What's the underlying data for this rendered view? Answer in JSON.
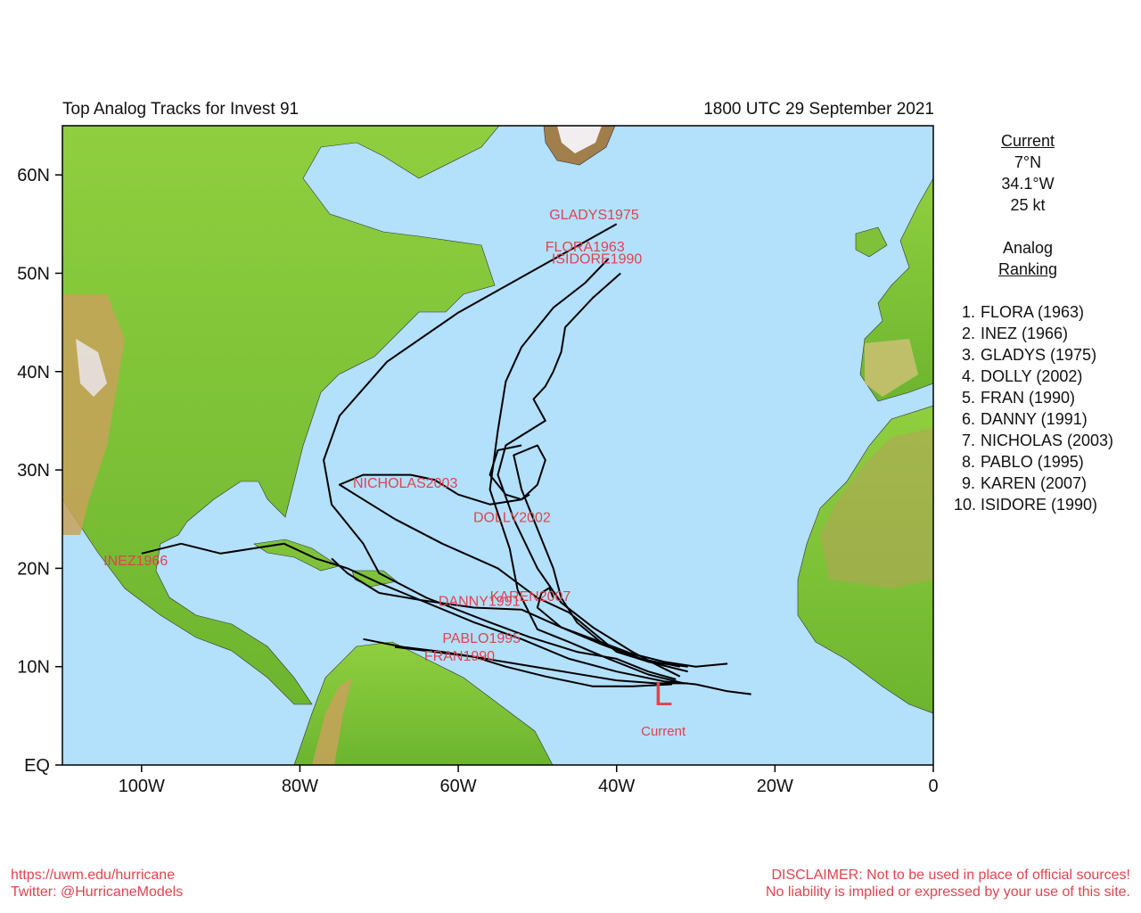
{
  "header": {
    "title": "Top Analog Tracks for Invest 91",
    "datetime": "1800 UTC 29 September 2021"
  },
  "axes": {
    "lat_labels": [
      "60N",
      "50N",
      "40N",
      "30N",
      "20N",
      "10N",
      "EQ"
    ],
    "lon_labels": [
      "100W",
      "80W",
      "60W",
      "40W",
      "20W",
      "0"
    ]
  },
  "current": {
    "heading": "Current",
    "lat": "7°N",
    "lon": "34.1°W",
    "wind": "25 kt",
    "marker_symbol": "L",
    "marker_label": "Current"
  },
  "analog": {
    "heading_line1": "Analog",
    "heading_line2": "Ranking",
    "list": [
      {
        "num": "1.",
        "name": "FLORA (1963)"
      },
      {
        "num": "2.",
        "name": "INEZ (1966)"
      },
      {
        "num": "3.",
        "name": "GLADYS (1975)"
      },
      {
        "num": "4.",
        "name": "DOLLY (2002)"
      },
      {
        "num": "5.",
        "name": "FRAN (1990)"
      },
      {
        "num": "6.",
        "name": "DANNY (1991)"
      },
      {
        "num": "7.",
        "name": "NICHOLAS (2003)"
      },
      {
        "num": "8.",
        "name": "PABLO (1995)"
      },
      {
        "num": "9.",
        "name": "KAREN (2007)"
      },
      {
        "num": "10.",
        "name": "ISIDORE (1990)"
      }
    ]
  },
  "track_labels": [
    {
      "text": "GLADYS1975",
      "lat": 55.5,
      "lon": -48.5
    },
    {
      "text": "FLORA1963",
      "lat": 52.2,
      "lon": -49.0
    },
    {
      "text": "ISIDORE1990",
      "lat": 51.0,
      "lon": -48.2
    },
    {
      "text": "NICHOLAS2003",
      "lat": 28.2,
      "lon": -73.3
    },
    {
      "text": "DOLLY2002",
      "lat": 24.7,
      "lon": -58.1
    },
    {
      "text": "INEZ1966",
      "lat": 20.3,
      "lon": -104.8
    },
    {
      "text": "KAREN2007",
      "lat": 16.7,
      "lon": -56.0
    },
    {
      "text": "DANNY1991",
      "lat": 16.2,
      "lon": -62.5
    },
    {
      "text": "PABLO1995",
      "lat": 12.4,
      "lon": -62.0
    },
    {
      "text": "FRAN1990",
      "lat": 10.6,
      "lon": -64.3
    }
  ],
  "tracks": [
    {
      "name": "GLADYS",
      "pts": [
        [
          -32.5,
          8.7
        ],
        [
          -36,
          9.5
        ],
        [
          -40,
          10.8
        ],
        [
          -45,
          11.5
        ],
        [
          -51,
          13
        ],
        [
          -56,
          14.5
        ],
        [
          -64,
          17
        ],
        [
          -70,
          19.5
        ],
        [
          -72,
          22.5
        ],
        [
          -76,
          26.5
        ],
        [
          -77,
          31
        ],
        [
          -75,
          35.5
        ],
        [
          -69,
          41
        ],
        [
          -60,
          46
        ],
        [
          -50,
          50.5
        ],
        [
          -40,
          55
        ]
      ]
    },
    {
      "name": "FLORA",
      "pts": [
        [
          -31.5,
          8.3
        ],
        [
          -36,
          9.2
        ],
        [
          -41,
          10.8
        ],
        [
          -46,
          12.5
        ],
        [
          -50,
          13.8
        ],
        [
          -52.5,
          17.8
        ],
        [
          -53.5,
          22
        ],
        [
          -56,
          28
        ],
        [
          -55,
          34
        ],
        [
          -54,
          39
        ],
        [
          -52,
          42.5
        ],
        [
          -48,
          46.5
        ],
        [
          -44,
          49
        ],
        [
          -41,
          51.5
        ]
      ]
    },
    {
      "name": "ISIDORE",
      "pts": [
        [
          -32,
          9
        ],
        [
          -34.5,
          10
        ],
        [
          -38,
          11.5
        ],
        [
          -43,
          14
        ],
        [
          -47,
          16.5
        ],
        [
          -50,
          20
        ],
        [
          -53,
          25
        ],
        [
          -55,
          29.5
        ],
        [
          -54,
          32.5
        ],
        [
          -50,
          34.5
        ],
        [
          -49,
          35
        ],
        [
          -50.5,
          37.2
        ],
        [
          -49,
          38.5
        ],
        [
          -48,
          40
        ],
        [
          -47,
          42
        ],
        [
          -46.5,
          44.5
        ],
        [
          -43,
          47.5
        ],
        [
          -39.5,
          50
        ]
      ]
    },
    {
      "name": "NICHOLAS",
      "pts": [
        [
          -31,
          10
        ],
        [
          -36,
          10.5
        ],
        [
          -40,
          11.5
        ],
        [
          -43,
          13.5
        ],
        [
          -46,
          15.5
        ],
        [
          -50,
          17
        ],
        [
          -55,
          20
        ],
        [
          -62,
          22.5
        ],
        [
          -68,
          25
        ],
        [
          -73,
          27.5
        ],
        [
          -75,
          28.5
        ],
        [
          -72,
          29.5
        ],
        [
          -68,
          29.5
        ],
        [
          -66,
          29.5
        ],
        [
          -63,
          29
        ],
        [
          -60,
          27.5
        ],
        [
          -56,
          26.5
        ],
        [
          -52,
          27
        ],
        [
          -51,
          27.5
        ]
      ]
    },
    {
      "name": "DOLLY",
      "pts": [
        [
          -26,
          10.3
        ],
        [
          -30,
          10
        ],
        [
          -34,
          10.5
        ],
        [
          -38,
          11.3
        ],
        [
          -42,
          12.5
        ],
        [
          -45,
          14.5
        ],
        [
          -47,
          17
        ],
        [
          -48,
          20
        ],
        [
          -50,
          24
        ],
        [
          -52,
          28
        ],
        [
          -53,
          31.5
        ],
        [
          -50,
          32.5
        ],
        [
          -49,
          31
        ],
        [
          -50,
          28.5
        ],
        [
          -52,
          27
        ],
        [
          -54,
          27.5
        ],
        [
          -56,
          29.5
        ],
        [
          -55,
          32
        ],
        [
          -52,
          32.5
        ]
      ]
    },
    {
      "name": "INEZ",
      "pts": [
        [
          -23,
          7.2
        ],
        [
          -26,
          7.5
        ],
        [
          -30,
          8.2
        ],
        [
          -34,
          8.5
        ],
        [
          -40,
          9.5
        ],
        [
          -46,
          10.8
        ],
        [
          -52,
          12.8
        ],
        [
          -58,
          14.5
        ],
        [
          -64,
          16.5
        ],
        [
          -70,
          18.5
        ],
        [
          -74,
          20
        ],
        [
          -78,
          21
        ],
        [
          -82,
          22.5
        ],
        [
          -86,
          22
        ],
        [
          -90,
          21.5
        ],
        [
          -95,
          22.5
        ],
        [
          -100,
          21.5
        ]
      ]
    },
    {
      "name": "KAREN",
      "pts": [
        [
          -31,
          9.5
        ],
        [
          -36,
          10.5
        ],
        [
          -42,
          12.5
        ],
        [
          -47,
          14
        ],
        [
          -50,
          16
        ],
        [
          -49.5,
          17.5
        ],
        [
          -48.5,
          18
        ],
        [
          -48,
          17
        ]
      ]
    },
    {
      "name": "DANNY",
      "pts": [
        [
          -32,
          10
        ],
        [
          -37,
          10.8
        ],
        [
          -42,
          12.3
        ],
        [
          -47,
          14
        ],
        [
          -52,
          15.8
        ],
        [
          -58,
          16
        ],
        [
          -65,
          16.8
        ],
        [
          -70,
          17.5
        ],
        [
          -74,
          19.5
        ],
        [
          -76,
          21
        ]
      ]
    },
    {
      "name": "PABLO",
      "pts": [
        [
          -33,
          8.2
        ],
        [
          -38,
          8
        ],
        [
          -43,
          8
        ],
        [
          -49,
          9
        ],
        [
          -54,
          10
        ],
        [
          -58,
          11
        ],
        [
          -62,
          11.5
        ],
        [
          -67,
          12
        ],
        [
          -72,
          12.8
        ]
      ]
    },
    {
      "name": "FRAN",
      "pts": [
        [
          -31,
          8.3
        ],
        [
          -35,
          8.3
        ],
        [
          -40,
          8.6
        ],
        [
          -46,
          9.4
        ],
        [
          -52,
          10.2
        ],
        [
          -58,
          11
        ],
        [
          -63,
          11.5
        ],
        [
          -68,
          12
        ]
      ]
    }
  ],
  "current_pos": {
    "lat": 7.0,
    "lon": -34.1
  },
  "footer": {
    "url": "https://uwm.edu/hurricane",
    "twitter": "Twitter: @HurricaneModels",
    "disclaimer1": "DISCLAIMER: Not to be used in place of official sources!",
    "disclaimer2": "No liability is implied or expressed by your use of this site."
  },
  "colors": {
    "ocean": "#b3e0fb",
    "land_low": "#7fc23a",
    "land_mid": "#c8d96a",
    "land_high": "#b88a4a",
    "track": "#000000",
    "label": "#e0434f"
  }
}
